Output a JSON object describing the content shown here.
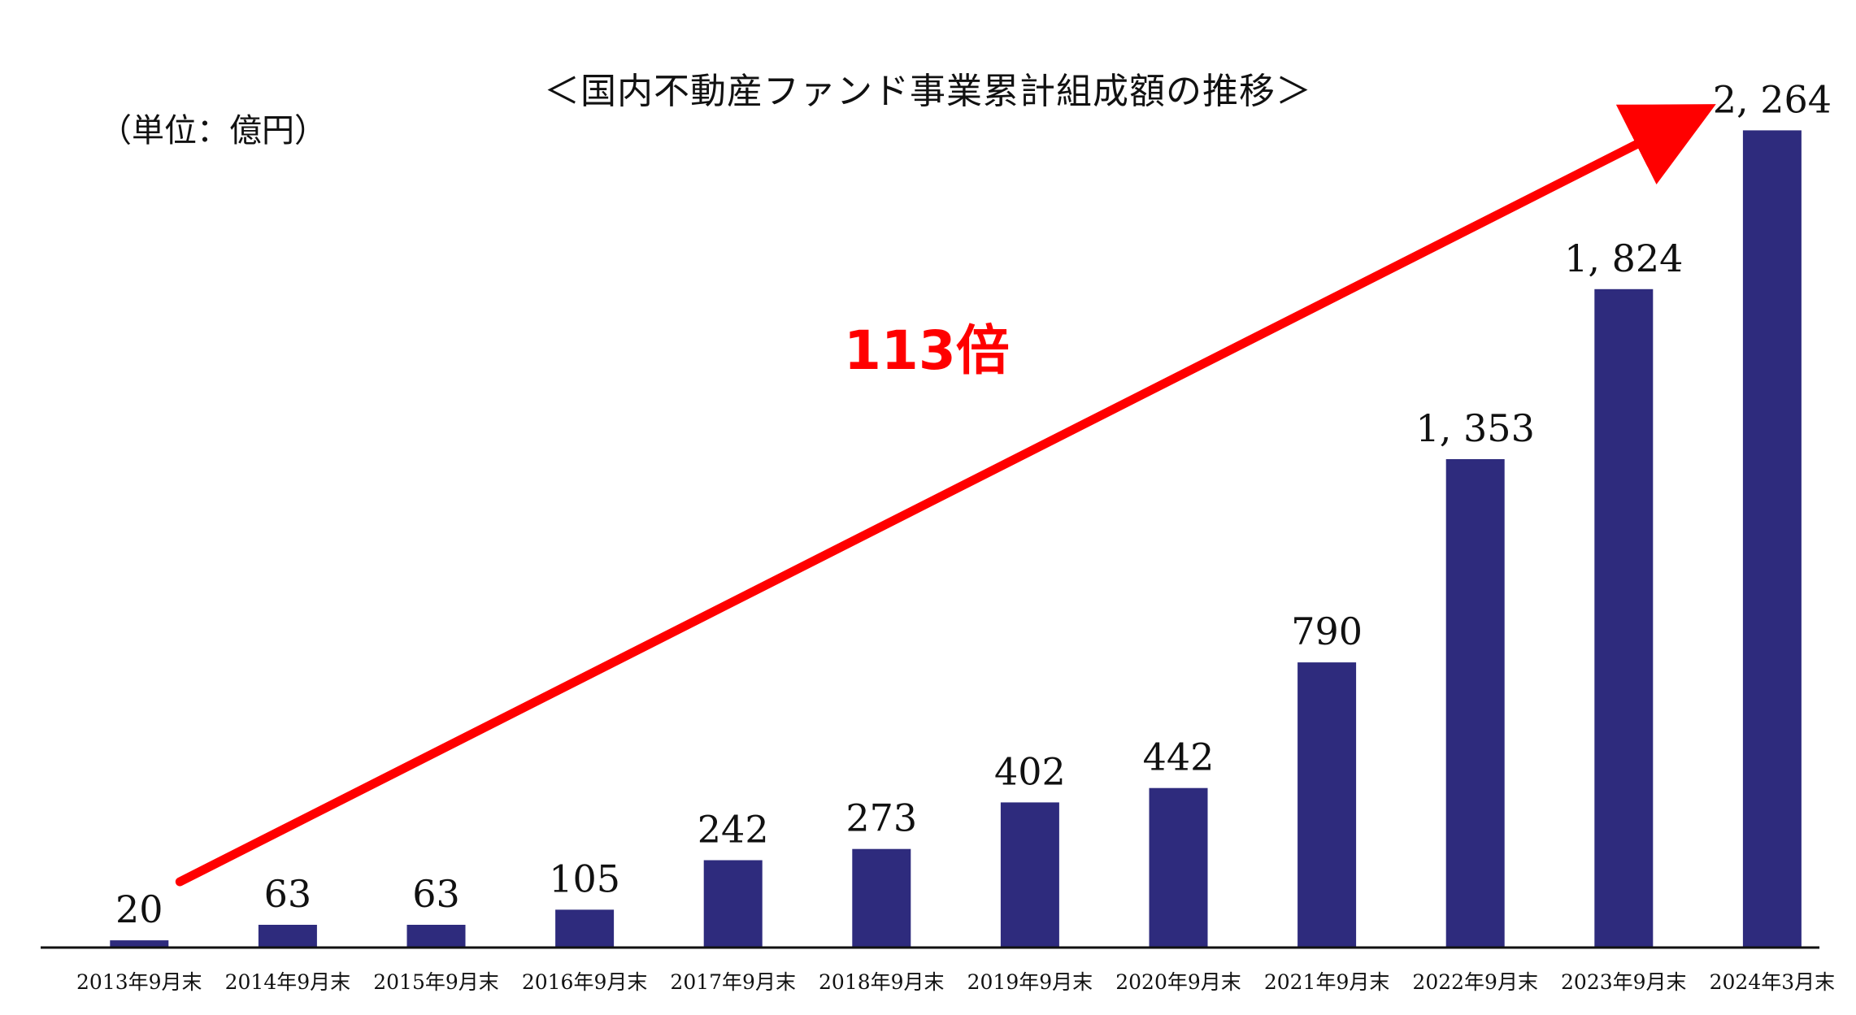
{
  "chart_data": {
    "type": "bar",
    "title": "＜国内不動産ファンド事業累計組成額の推移＞",
    "unit_label": "（単位：億円）",
    "categories": [
      "2013年9月末",
      "2014年9月末",
      "2015年9月末",
      "2016年9月末",
      "2017年9月末",
      "2018年9月末",
      "2019年9月末",
      "2020年9月末",
      "2021年9月末",
      "2022年9月末",
      "2023年9月末",
      "2024年3月末"
    ],
    "values": [
      20,
      63,
      63,
      105,
      242,
      273,
      402,
      442,
      790,
      1353,
      1824,
      2264
    ],
    "value_labels": [
      "20",
      "63",
      "63",
      "105",
      "242",
      "273",
      "402",
      "442",
      "790",
      "1, 353",
      "1, 824",
      "2, 264"
    ],
    "xlabel": "",
    "ylabel": "",
    "ylim": [
      0,
      2400
    ],
    "grid": false,
    "legend": "none",
    "annotation": {
      "text": "113倍",
      "from_category": "2013年9月末",
      "to_category": "2024年3月末",
      "color": "#ff0000"
    },
    "colors": {
      "bar": "#2e2b7d",
      "arrow": "#ff0000",
      "axis": "#111111",
      "text": "#111111"
    }
  }
}
